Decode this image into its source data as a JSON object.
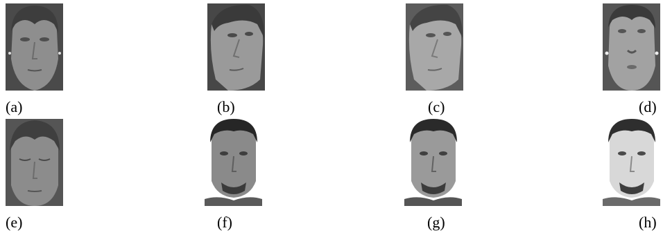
{
  "panels": [
    {
      "label": "(a)",
      "subject": "woman",
      "pose": "frontal"
    },
    {
      "label": "(b)",
      "subject": "woman",
      "pose": "looking up-left"
    },
    {
      "label": "(c)",
      "subject": "woman",
      "pose": "looking up-left, bright"
    },
    {
      "label": "(d)",
      "subject": "woman",
      "pose": "looking up"
    },
    {
      "label": "(e)",
      "subject": "woman",
      "pose": "looking down"
    },
    {
      "label": "(f)",
      "subject": "man",
      "pose": "frontal, dim"
    },
    {
      "label": "(g)",
      "subject": "man",
      "pose": "frontal"
    },
    {
      "label": "(h)",
      "subject": "man",
      "pose": "frontal, overexposed"
    }
  ]
}
